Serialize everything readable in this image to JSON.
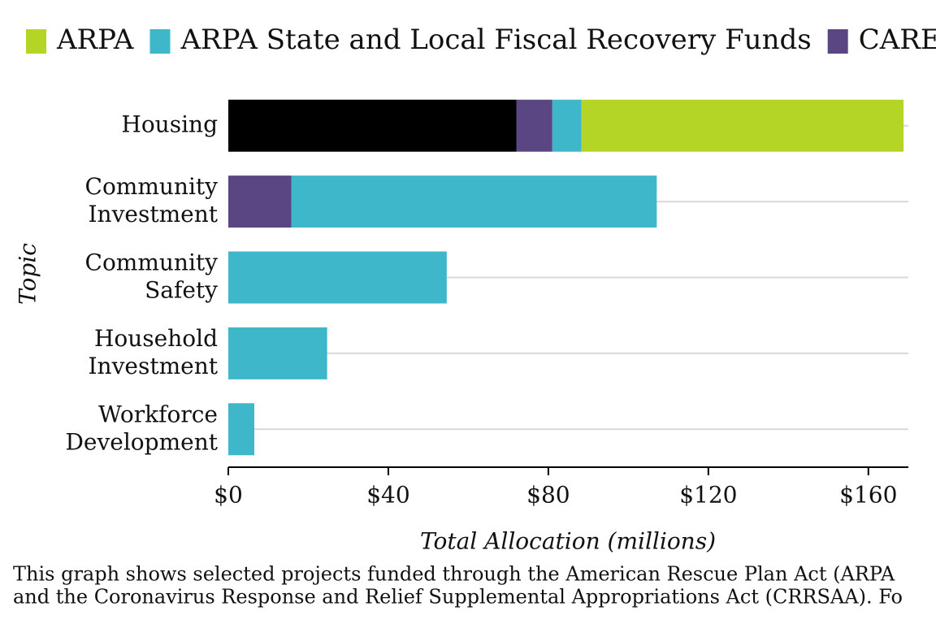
{
  "chart_data": {
    "type": "stacked-bar-horizontal",
    "categories": [
      "Housing",
      "Community Investment",
      "Community Safety",
      "Household Investment",
      "Workforce Development"
    ],
    "series": [
      {
        "name": null,
        "color": "#000000",
        "values": [
          72,
          null,
          null,
          null,
          null
        ]
      },
      {
        "name": "CARES",
        "color": "#5a4683",
        "values": [
          9,
          15.8,
          null,
          null,
          null
        ]
      },
      {
        "name": "ARPA State and Local Fiscal Recovery Funds",
        "color": "#3db7c9",
        "values": [
          7.3,
          91.3,
          54.6,
          24.7,
          6.5
        ]
      },
      {
        "name": "ARPA",
        "color": "#b5d526",
        "values": [
          80.5,
          null,
          null,
          null,
          null
        ]
      }
    ],
    "xlim": [
      0,
      170
    ],
    "xticks": [
      {
        "value": 0,
        "label": "$0"
      },
      {
        "value": 40,
        "label": "$40"
      },
      {
        "value": 80,
        "label": "$80"
      },
      {
        "value": 120,
        "label": "$120"
      },
      {
        "value": 160,
        "label": "$160"
      }
    ],
    "x_label": "Total Allocation (millions)",
    "y_label": "Topic",
    "caption": [
      "This graph shows selected projects funded through the American Rescue Plan Act (ARPA",
      "and the Coronavirus Response and Relief Supplemental Appropriations Act (CRRSAA). Fo"
    ],
    "grid": true
  }
}
